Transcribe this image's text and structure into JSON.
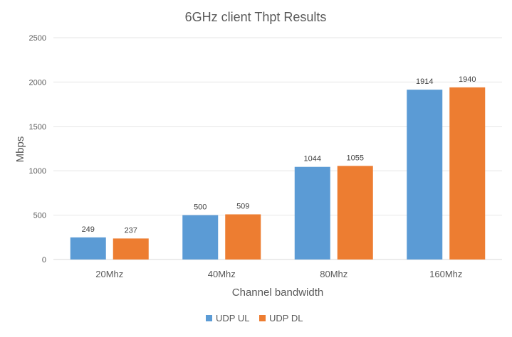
{
  "chart_data": {
    "type": "bar",
    "title": "6GHz client Thpt Results",
    "xlabel": "Channel bandwidth",
    "ylabel": "Mbps",
    "categories": [
      "20Mhz",
      "40Mhz",
      "80Mhz",
      "160Mhz"
    ],
    "series": [
      {
        "name": "UDP UL",
        "values": [
          249,
          500,
          1044,
          1914
        ],
        "color": "#5B9BD5"
      },
      {
        "name": "UDP DL",
        "values": [
          237,
          509,
          1055,
          1940
        ],
        "color": "#ED7D31"
      }
    ],
    "ylim": [
      0,
      2500
    ],
    "yticks": [
      0,
      500,
      1000,
      1500,
      2000,
      2500
    ],
    "grid": true,
    "legend_position": "bottom",
    "data_labels": true
  }
}
